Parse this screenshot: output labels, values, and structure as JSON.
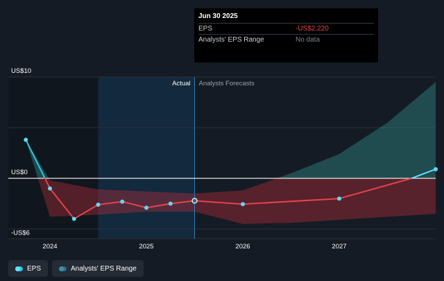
{
  "chart_data": {
    "type": "line",
    "y_tick_labels": [
      "US$10",
      "US$0",
      "-US$6"
    ],
    "y_tick_values": [
      10,
      0,
      -6
    ],
    "ylim": [
      -6,
      10
    ],
    "x_tick_labels": [
      "2024",
      "2025",
      "2026",
      "2027"
    ],
    "x_tick_values": [
      2024,
      2025,
      2026,
      2027
    ],
    "xlim": [
      2023.6,
      2028.0
    ],
    "actual_label": "Actual",
    "forecast_label": "Analysts Forecasts",
    "actual_end_x": 2025.5,
    "highlight_start_x": 2024.5,
    "grid": true,
    "series": [
      {
        "name": "EPS",
        "color": "#e6434c",
        "points": [
          {
            "x": 2023.75,
            "y": 3.8
          },
          {
            "x": 2024.0,
            "y": -1.0
          },
          {
            "x": 2024.25,
            "y": -4.0
          },
          {
            "x": 2024.5,
            "y": -2.6
          },
          {
            "x": 2024.75,
            "y": -2.3
          },
          {
            "x": 2025.0,
            "y": -2.9
          },
          {
            "x": 2025.25,
            "y": -2.5
          },
          {
            "x": 2025.5,
            "y": -2.22
          },
          {
            "x": 2026.0,
            "y": -2.55
          },
          {
            "x": 2027.0,
            "y": -2.0
          },
          {
            "x": 2027.75,
            "y": 0.0
          },
          {
            "x": 2028.0,
            "y": 0.9
          }
        ]
      },
      {
        "name": "Analysts' EPS Range",
        "upper": [
          {
            "x": 2023.75,
            "y": 3.8
          },
          {
            "x": 2024.0,
            "y": -0.2
          },
          {
            "x": 2024.5,
            "y": -1.1
          },
          {
            "x": 2025.0,
            "y": -1.3
          },
          {
            "x": 2025.5,
            "y": -1.5
          },
          {
            "x": 2026.0,
            "y": -1.2
          },
          {
            "x": 2026.5,
            "y": 0.5
          },
          {
            "x": 2027.0,
            "y": 2.4
          },
          {
            "x": 2027.5,
            "y": 5.5
          },
          {
            "x": 2028.0,
            "y": 9.5
          }
        ],
        "lower": [
          {
            "x": 2023.75,
            "y": 3.8
          },
          {
            "x": 2024.0,
            "y": -3.8
          },
          {
            "x": 2024.5,
            "y": -3.6
          },
          {
            "x": 2025.0,
            "y": -3.3
          },
          {
            "x": 2025.5,
            "y": -3.3
          },
          {
            "x": 2026.0,
            "y": -4.5
          },
          {
            "x": 2026.5,
            "y": -4.4
          },
          {
            "x": 2027.0,
            "y": -4.1
          },
          {
            "x": 2027.5,
            "y": -3.8
          },
          {
            "x": 2028.0,
            "y": -3.5
          }
        ]
      }
    ]
  },
  "tooltip": {
    "date": "Jun 30 2025",
    "rows": [
      {
        "label": "EPS",
        "value": "-US$2.220"
      },
      {
        "label": "Analysts' EPS Range",
        "value": "No data"
      }
    ]
  },
  "legend": {
    "items": [
      {
        "label": "EPS"
      },
      {
        "label": "Analysts' EPS Range"
      }
    ]
  }
}
